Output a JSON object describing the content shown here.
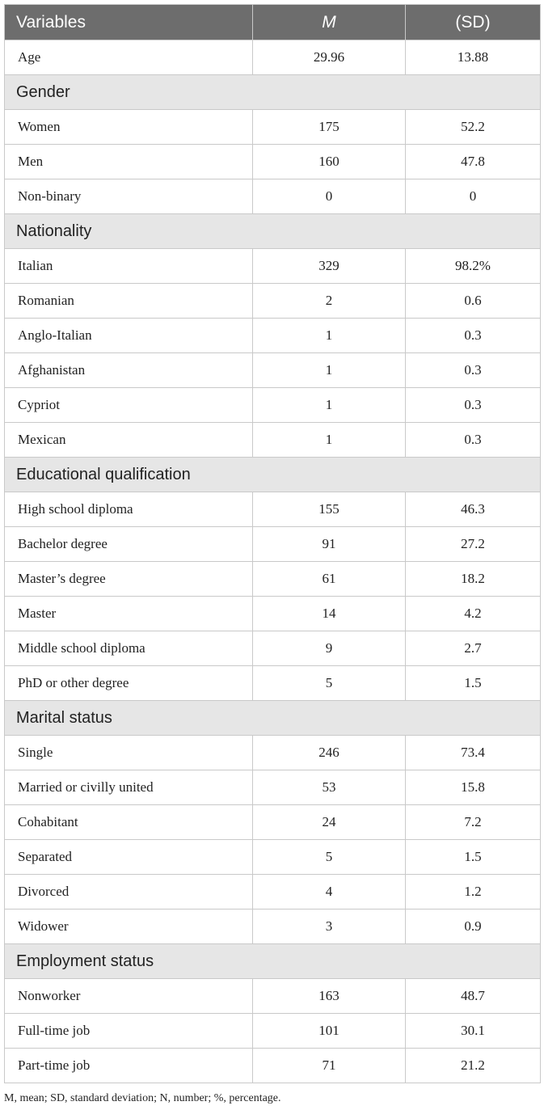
{
  "header": {
    "variables": "Variables",
    "m": "M",
    "sd": "(SD)"
  },
  "rows": [
    {
      "type": "row",
      "label": "Age",
      "m": "29.96",
      "sd": "13.88"
    },
    {
      "type": "section",
      "label": "Gender"
    },
    {
      "type": "row",
      "label": "Women",
      "m": "175",
      "sd": "52.2"
    },
    {
      "type": "row",
      "label": "Men",
      "m": "160",
      "sd": "47.8"
    },
    {
      "type": "row",
      "label": "Non-binary",
      "m": "0",
      "sd": "0"
    },
    {
      "type": "section",
      "label": "Nationality"
    },
    {
      "type": "row",
      "label": "Italian",
      "m": "329",
      "sd": "98.2%"
    },
    {
      "type": "row",
      "label": "Romanian",
      "m": "2",
      "sd": "0.6"
    },
    {
      "type": "row",
      "label": "Anglo-Italian",
      "m": "1",
      "sd": "0.3"
    },
    {
      "type": "row",
      "label": "Afghanistan",
      "m": "1",
      "sd": "0.3"
    },
    {
      "type": "row",
      "label": "Cypriot",
      "m": "1",
      "sd": "0.3"
    },
    {
      "type": "row",
      "label": "Mexican",
      "m": "1",
      "sd": "0.3"
    },
    {
      "type": "section",
      "label": "Educational qualification"
    },
    {
      "type": "row",
      "label": "High school diploma",
      "m": "155",
      "sd": "46.3"
    },
    {
      "type": "row",
      "label": "Bachelor degree",
      "m": "91",
      "sd": "27.2"
    },
    {
      "type": "row",
      "label": "Master’s degree",
      "m": "61",
      "sd": "18.2"
    },
    {
      "type": "row",
      "label": "Master",
      "m": "14",
      "sd": "4.2"
    },
    {
      "type": "row",
      "label": "Middle school diploma",
      "m": "9",
      "sd": "2.7"
    },
    {
      "type": "row",
      "label": "PhD or other degree",
      "m": "5",
      "sd": "1.5"
    },
    {
      "type": "section",
      "label": "Marital status"
    },
    {
      "type": "row",
      "label": "Single",
      "m": "246",
      "sd": "73.4"
    },
    {
      "type": "row",
      "label": "Married or civilly united",
      "m": "53",
      "sd": "15.8"
    },
    {
      "type": "row",
      "label": "Cohabitant",
      "m": "24",
      "sd": "7.2"
    },
    {
      "type": "row",
      "label": "Separated",
      "m": "5",
      "sd": "1.5"
    },
    {
      "type": "row",
      "label": "Divorced",
      "m": "4",
      "sd": "1.2"
    },
    {
      "type": "row",
      "label": "Widower",
      "m": "3",
      "sd": "0.9"
    },
    {
      "type": "section",
      "label": "Employment status"
    },
    {
      "type": "row",
      "label": "Nonworker",
      "m": "163",
      "sd": "48.7"
    },
    {
      "type": "row",
      "label": "Full-time job",
      "m": "101",
      "sd": "30.1"
    },
    {
      "type": "row",
      "label": "Part-time job",
      "m": "71",
      "sd": "21.2"
    }
  ],
  "footnote": "M, mean; SD, standard deviation; N, number; %, percentage."
}
